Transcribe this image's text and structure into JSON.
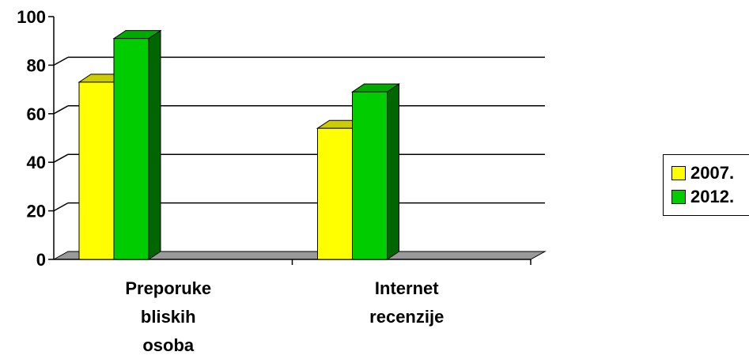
{
  "chart_data": {
    "type": "bar",
    "categories": [
      [
        "Preporuke",
        "bliskih",
        "osoba"
      ],
      [
        "Internet",
        "recenzije"
      ]
    ],
    "series": [
      {
        "name": "2007.",
        "values": [
          73,
          54
        ],
        "color": "#ffff00",
        "top_color": "#cccc00",
        "side_color": "#999900"
      },
      {
        "name": "2012.",
        "values": [
          91,
          69
        ],
        "color": "#00cc00",
        "top_color": "#00aa00",
        "side_color": "#006600"
      }
    ],
    "ylim": [
      0,
      100
    ],
    "yticks": [
      "0",
      "20",
      "40",
      "60",
      "80",
      "100"
    ],
    "grid": true,
    "legend": "right",
    "floor_color": "#999999"
  }
}
